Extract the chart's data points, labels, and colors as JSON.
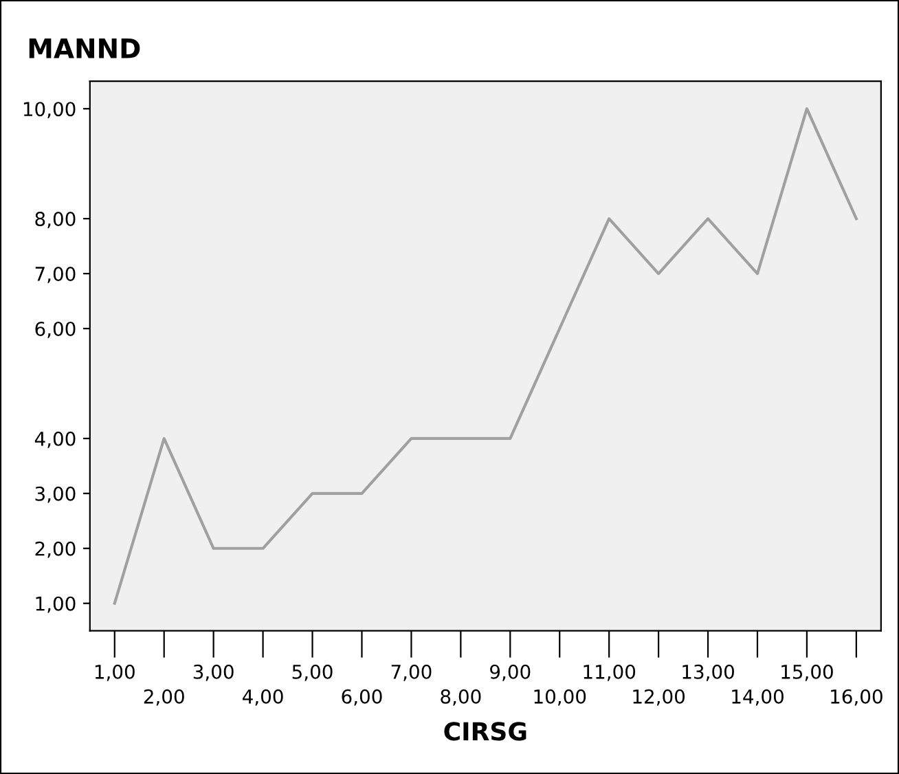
{
  "chart_data": {
    "type": "line",
    "title": "MANND",
    "xlabel": "CIRSG",
    "categories": [
      "1,00",
      "2,00",
      "3,00",
      "4,00",
      "5,00",
      "6,00",
      "7,00",
      "8,00",
      "9,00",
      "10,00",
      "11,00",
      "12,00",
      "13,00",
      "14,00",
      "15,00",
      "16,00"
    ],
    "series": [
      {
        "color": "#a0a0a0",
        "values": [
          1,
          4,
          2,
          2,
          3,
          3,
          4,
          4,
          4,
          6,
          8,
          7,
          8,
          7,
          10,
          8
        ]
      }
    ],
    "ylim": [
      0.5,
      10.5
    ],
    "yticks": [
      {
        "value": 1,
        "label": "1,00"
      },
      {
        "value": 2,
        "label": "2,00"
      },
      {
        "value": 3,
        "label": "3,00"
      },
      {
        "value": 4,
        "label": "4,00"
      },
      {
        "value": 6,
        "label": "6,00"
      },
      {
        "value": 7,
        "label": "7,00"
      },
      {
        "value": 8,
        "label": "8,00"
      },
      {
        "value": 10,
        "label": "10,00"
      }
    ],
    "grid": false,
    "marker": "none",
    "line_style": "solid"
  }
}
